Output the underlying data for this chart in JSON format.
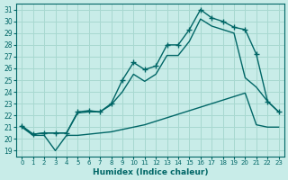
{
  "xlabel": "Humidex (Indice chaleur)",
  "ylabel": "",
  "xlim": [
    -0.5,
    23.5
  ],
  "ylim": [
    18.5,
    31.5
  ],
  "xticks": [
    0,
    1,
    2,
    3,
    4,
    5,
    6,
    7,
    8,
    9,
    10,
    11,
    12,
    13,
    14,
    15,
    16,
    17,
    18,
    19,
    20,
    21,
    22,
    23
  ],
  "yticks": [
    19,
    20,
    21,
    22,
    23,
    24,
    25,
    26,
    27,
    28,
    29,
    30,
    31
  ],
  "bg_color": "#c8ece8",
  "grid_color": "#a8d8d0",
  "line_color": "#006666",
  "line1_x": [
    0,
    1,
    2,
    3,
    4,
    5,
    6,
    7,
    8,
    9,
    10,
    11,
    12,
    13,
    14,
    15,
    16,
    17,
    18,
    19,
    20,
    21,
    22,
    23
  ],
  "line1_y": [
    21.1,
    20.4,
    20.5,
    20.5,
    20.5,
    22.3,
    22.4,
    22.3,
    23.0,
    25.0,
    26.5,
    25.9,
    26.2,
    28.0,
    28.0,
    29.3,
    31.0,
    30.3,
    30.0,
    29.5,
    29.3,
    27.2,
    23.2,
    22.3
  ],
  "line2_x": [
    0,
    1,
    2,
    3,
    4,
    5,
    6,
    7,
    8,
    9,
    10,
    11,
    12,
    13,
    14,
    15,
    16,
    17,
    18,
    19,
    20,
    21,
    22,
    23
  ],
  "line2_y": [
    21.1,
    20.4,
    20.5,
    20.5,
    20.5,
    22.2,
    22.3,
    22.3,
    22.9,
    24.0,
    25.5,
    24.9,
    25.5,
    27.1,
    27.1,
    28.3,
    30.2,
    29.6,
    29.3,
    29.0,
    25.2,
    24.4,
    23.2,
    22.3
  ],
  "line3_x": [
    0,
    1,
    2,
    3,
    4,
    5,
    6,
    7,
    8,
    9,
    10,
    11,
    12,
    13,
    14,
    15,
    16,
    17,
    18,
    19,
    20,
    21,
    22,
    23
  ],
  "line3_y": [
    21.0,
    20.3,
    20.3,
    19.0,
    20.3,
    20.3,
    20.4,
    20.5,
    20.6,
    20.8,
    21.0,
    21.2,
    21.5,
    21.8,
    22.1,
    22.4,
    22.7,
    23.0,
    23.3,
    23.6,
    23.9,
    21.2,
    21.0,
    21.0
  ]
}
